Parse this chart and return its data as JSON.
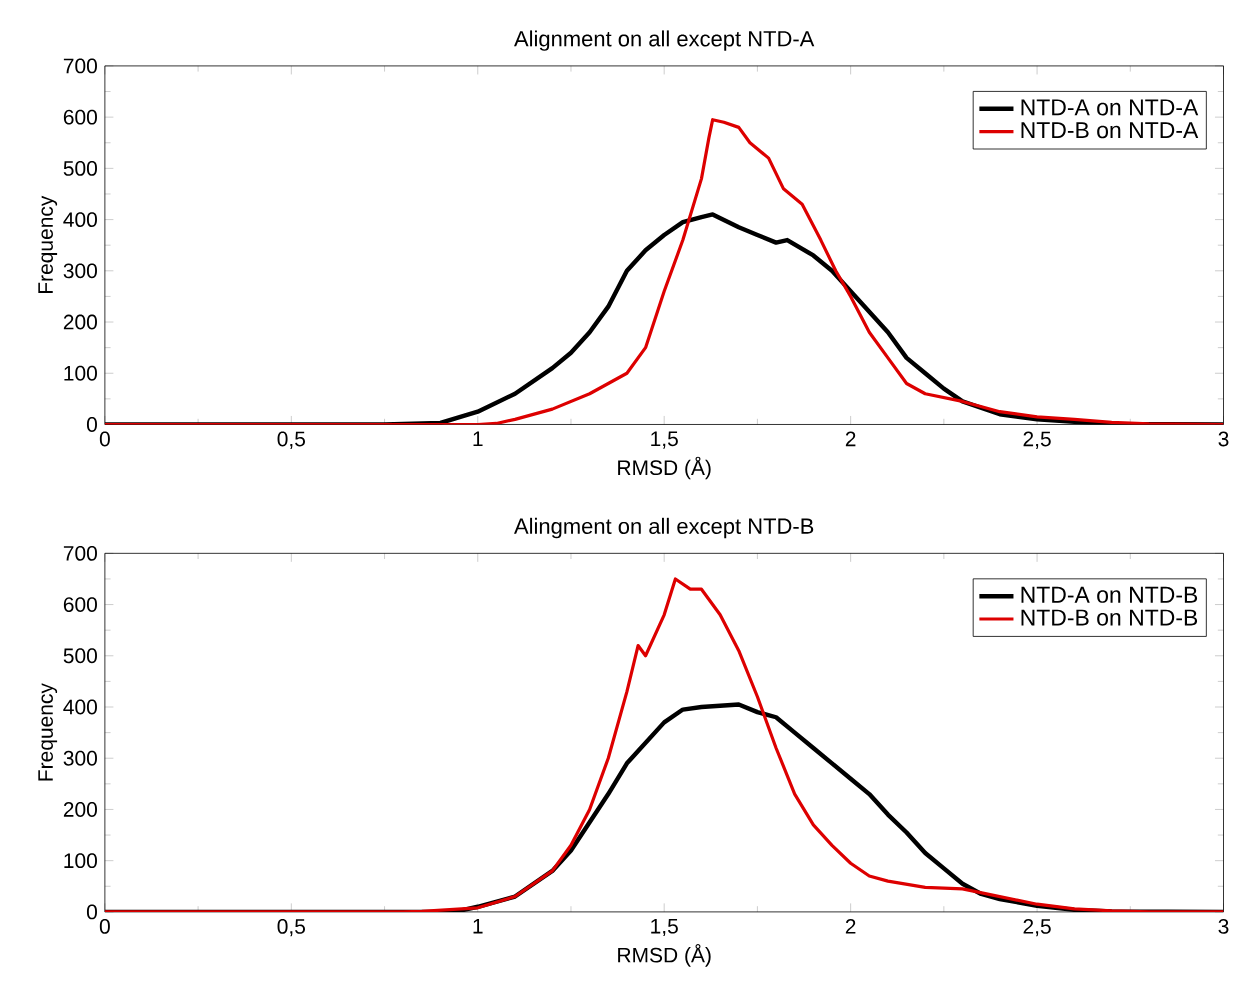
{
  "chart_data": [
    {
      "type": "line",
      "title": "Alignment on all except NTD-A",
      "xlabel": "RMSD (Å)",
      "ylabel": "Frequency",
      "xlim": [
        0,
        3
      ],
      "ylim": [
        0,
        700
      ],
      "xticks": [
        0,
        {
          "value": 0.5,
          "label": "0,5"
        },
        1,
        {
          "value": 1.5,
          "label": "1,5"
        },
        2,
        {
          "value": 2.5,
          "label": "2,5"
        },
        3
      ],
      "yticks": [
        0,
        100,
        200,
        300,
        400,
        500,
        600,
        700
      ],
      "grid": false,
      "legend": "top right",
      "marker": "none",
      "line_style": "solid",
      "series": [
        {
          "name": "NTD-A on NTD-A",
          "color": "#000000",
          "x": [
            0,
            0.75,
            0.9,
            1.0,
            1.1,
            1.2,
            1.25,
            1.3,
            1.35,
            1.4,
            1.45,
            1.5,
            1.55,
            1.6,
            1.63,
            1.7,
            1.75,
            1.8,
            1.83,
            1.9,
            1.95,
            2.0,
            2.05,
            2.1,
            2.15,
            2.2,
            2.25,
            2.3,
            2.4,
            2.5,
            2.6,
            2.7,
            3
          ],
          "values": [
            0,
            0,
            3,
            25,
            60,
            110,
            140,
            180,
            230,
            300,
            340,
            370,
            395,
            405,
            410,
            385,
            370,
            355,
            360,
            330,
            300,
            260,
            220,
            180,
            130,
            100,
            70,
            45,
            20,
            10,
            5,
            1,
            0
          ]
        },
        {
          "name": "NTD-B on NTD-A",
          "color": "#dd0000",
          "x": [
            0,
            1.0,
            1.05,
            1.1,
            1.2,
            1.3,
            1.4,
            1.45,
            1.5,
            1.55,
            1.6,
            1.62,
            1.63,
            1.66,
            1.7,
            1.73,
            1.78,
            1.82,
            1.87,
            1.92,
            1.96,
            2.0,
            2.05,
            2.1,
            2.15,
            2.2,
            2.3,
            2.4,
            2.5,
            2.6,
            2.7,
            2.8,
            3
          ],
          "values": [
            0,
            0,
            2,
            10,
            30,
            60,
            100,
            150,
            260,
            360,
            480,
            560,
            595,
            590,
            580,
            550,
            520,
            460,
            430,
            360,
            300,
            250,
            180,
            130,
            80,
            60,
            45,
            25,
            15,
            10,
            4,
            1,
            0
          ]
        }
      ]
    },
    {
      "type": "line",
      "title": "Alingment on all except NTD-B",
      "xlabel": "RMSD (Å)",
      "ylabel": "Frequency",
      "xlim": [
        0,
        3
      ],
      "ylim": [
        0,
        700
      ],
      "xticks": [
        0,
        {
          "value": 0.5,
          "label": "0,5"
        },
        1,
        {
          "value": 1.5,
          "label": "1,5"
        },
        2,
        {
          "value": 2.5,
          "label": "2,5"
        },
        3
      ],
      "yticks": [
        0,
        100,
        200,
        300,
        400,
        500,
        600,
        700
      ],
      "grid": false,
      "legend": "top right",
      "marker": "none",
      "line_style": "solid",
      "series": [
        {
          "name": "NTD-A on NTD-B",
          "color": "#000000",
          "x": [
            0,
            0.9,
            0.95,
            1.0,
            1.1,
            1.2,
            1.25,
            1.3,
            1.35,
            1.4,
            1.45,
            1.5,
            1.55,
            1.6,
            1.7,
            1.75,
            1.8,
            1.85,
            1.9,
            1.95,
            2.0,
            2.05,
            2.1,
            2.15,
            2.2,
            2.25,
            2.3,
            2.35,
            2.4,
            2.5,
            2.6,
            2.7,
            3
          ],
          "values": [
            0,
            0,
            2,
            10,
            30,
            80,
            120,
            175,
            230,
            290,
            330,
            370,
            395,
            400,
            405,
            390,
            380,
            350,
            320,
            290,
            260,
            230,
            190,
            155,
            115,
            85,
            55,
            35,
            25,
            12,
            4,
            1,
            0
          ]
        },
        {
          "name": "NTD-B on NTD-B",
          "color": "#dd0000",
          "x": [
            0,
            0.8,
            0.85,
            1.0,
            1.1,
            1.2,
            1.25,
            1.3,
            1.35,
            1.4,
            1.43,
            1.45,
            1.5,
            1.53,
            1.57,
            1.6,
            1.65,
            1.7,
            1.75,
            1.8,
            1.85,
            1.9,
            1.95,
            2.0,
            2.05,
            2.1,
            2.2,
            2.3,
            2.4,
            2.5,
            2.6,
            2.7,
            2.8,
            3
          ],
          "values": [
            0,
            0,
            1,
            8,
            30,
            80,
            130,
            200,
            300,
            430,
            520,
            500,
            580,
            650,
            630,
            630,
            580,
            510,
            420,
            320,
            230,
            170,
            130,
            95,
            70,
            60,
            48,
            45,
            30,
            15,
            6,
            2,
            0,
            0
          ]
        }
      ]
    }
  ]
}
